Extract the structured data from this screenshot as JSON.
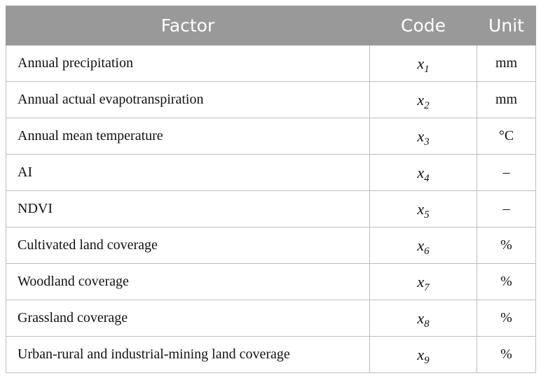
{
  "table": {
    "headers": {
      "factor": "Factor",
      "code": "Code",
      "unit": "Unit"
    },
    "rows": [
      {
        "factor": "Annual precipitation",
        "code_var": "x",
        "code_sub": "1",
        "unit": "mm"
      },
      {
        "factor": "Annual actual evapotranspiration",
        "code_var": "x",
        "code_sub": "2",
        "unit": "mm"
      },
      {
        "factor": "Annual mean temperature",
        "code_var": "x",
        "code_sub": "3",
        "unit": "°C"
      },
      {
        "factor": "AI",
        "code_var": "x",
        "code_sub": "4",
        "unit": "–"
      },
      {
        "factor": "NDVI",
        "code_var": "x",
        "code_sub": "5",
        "unit": "–"
      },
      {
        "factor": "Cultivated land coverage",
        "code_var": "x",
        "code_sub": "6",
        "unit": "%"
      },
      {
        "factor": "Woodland coverage",
        "code_var": "x",
        "code_sub": "7",
        "unit": "%"
      },
      {
        "factor": "Grassland coverage",
        "code_var": "x",
        "code_sub": "8",
        "unit": "%"
      },
      {
        "factor": "Urban-rural and industrial-mining land coverage",
        "code_var": "x",
        "code_sub": "9",
        "unit": "%"
      }
    ]
  }
}
